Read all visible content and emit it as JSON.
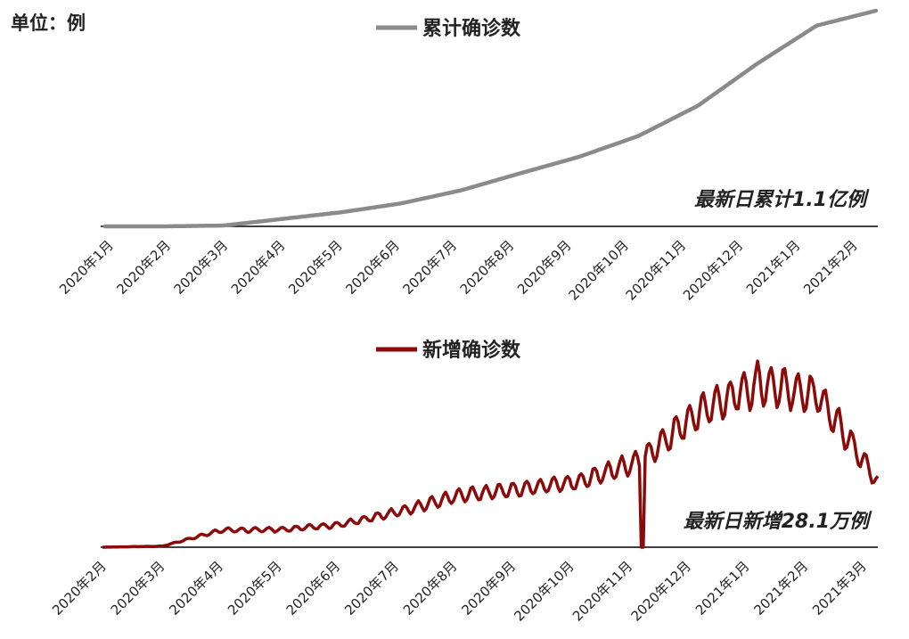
{
  "unit_label": "单位：例",
  "colors": {
    "cumulative": "#8a8a8a",
    "daily": "#8b0a0a",
    "axis": "#000000",
    "text": "#222222"
  },
  "chart_data": [
    {
      "type": "line",
      "legend": "累计确诊数",
      "annotation": "最新日累计1.1亿例",
      "x_tick_labels": [
        "2020年1月",
        "2020年2月",
        "2020年3月",
        "2020年4月",
        "2020年5月",
        "2020年6月",
        "2020年7月",
        "2020年8月",
        "2020年9月",
        "2020年10月",
        "2020年11月",
        "2020年12月",
        "2021年1月",
        "2021年2月"
      ],
      "x": [
        0,
        1,
        2,
        3,
        4,
        5,
        6,
        7,
        8,
        9,
        10,
        11,
        12,
        13
      ],
      "series": [
        {
          "name": "累计确诊数",
          "values_relative_to_max": [
            0.0,
            0.0,
            0.004,
            0.035,
            0.066,
            0.107,
            0.167,
            0.246,
            0.323,
            0.42,
            0.56,
            0.755,
            0.931,
            1.0
          ]
        }
      ],
      "latest_value_text": "1.1亿"
    },
    {
      "type": "line",
      "legend": "新增确诊数",
      "annotation": "最新日新增28.1万例",
      "x_tick_labels": [
        "2020年2月",
        "2020年3月",
        "2020年4月",
        "2020年5月",
        "2020年6月",
        "2020年7月",
        "2020年8月",
        "2020年9月",
        "2020年10月",
        "2020年11月",
        "2020年12月",
        "2021年1月",
        "2021年2月",
        "2021年3月"
      ],
      "x": [
        0,
        1,
        2,
        3,
        4,
        5,
        6,
        7,
        8,
        9,
        10,
        11,
        12,
        13
      ],
      "series": [
        {
          "name": "新增确诊数",
          "values_relative_to_max": [
            0.0,
            0.005,
            0.083,
            0.086,
            0.111,
            0.175,
            0.254,
            0.283,
            0.32,
            0.419,
            0.66,
            0.8,
            0.74,
            0.32
          ],
          "anomaly": {
            "x": 9.05,
            "value_relative_to_max": 0.0
          }
        }
      ],
      "latest_value_text": "28.1万"
    }
  ]
}
